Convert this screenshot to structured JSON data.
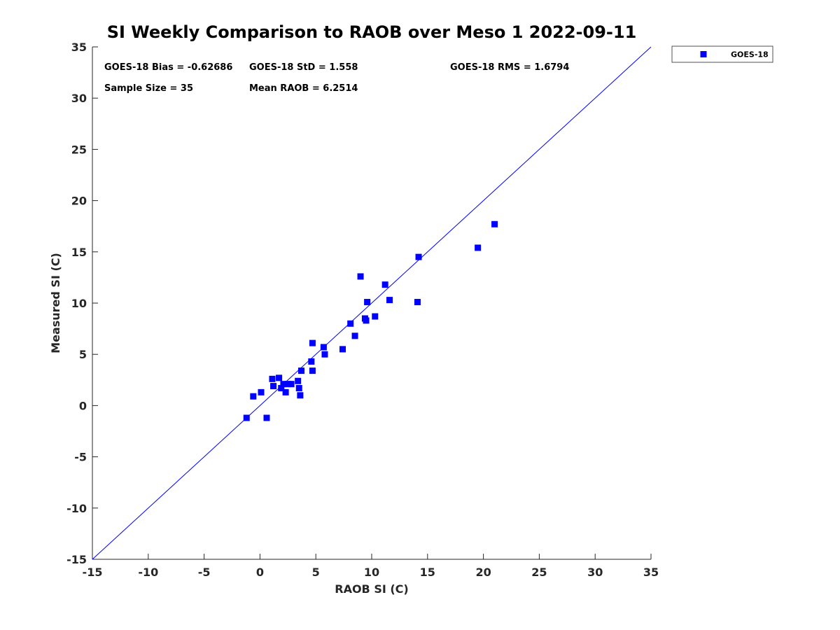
{
  "chart_data": {
    "type": "scatter",
    "title": "SI Weekly Comparison to RAOB over Meso 1 2022-09-11",
    "xlabel": "RAOB SI (C)",
    "ylabel": "Measured SI (C)",
    "xlim": [
      -15,
      35
    ],
    "ylim": [
      -15,
      35
    ],
    "xticks": [
      "-15",
      "-10",
      "-5",
      "0",
      "5",
      "10",
      "15",
      "20",
      "25",
      "30",
      "35"
    ],
    "yticks": [
      "-15",
      "-10",
      "-5",
      "0",
      "5",
      "10",
      "15",
      "20",
      "25",
      "30",
      "35"
    ],
    "grid": false,
    "legend_position": "outside-top-right",
    "reference_line": {
      "from": [
        -15,
        -15
      ],
      "to": [
        35,
        35
      ],
      "color": "#0000ff"
    },
    "series": [
      {
        "name": "GOES-18",
        "color": "#0000ff",
        "marker": "square",
        "points": [
          [
            -1.2,
            -1.2
          ],
          [
            0.6,
            -1.2
          ],
          [
            -0.6,
            0.9
          ],
          [
            0.1,
            1.3
          ],
          [
            1.1,
            2.6
          ],
          [
            1.2,
            1.9
          ],
          [
            1.7,
            2.7
          ],
          [
            1.9,
            1.7
          ],
          [
            2.1,
            2.1
          ],
          [
            2.3,
            1.3
          ],
          [
            2.5,
            2.1
          ],
          [
            2.8,
            2.1
          ],
          [
            3.4,
            2.4
          ],
          [
            3.5,
            1.7
          ],
          [
            3.6,
            1.0
          ],
          [
            3.7,
            3.4
          ],
          [
            4.6,
            4.3
          ],
          [
            4.7,
            6.1
          ],
          [
            4.7,
            3.4
          ],
          [
            5.7,
            5.7
          ],
          [
            5.8,
            5.0
          ],
          [
            7.4,
            5.5
          ],
          [
            8.1,
            8.0
          ],
          [
            8.5,
            6.8
          ],
          [
            9.0,
            12.6
          ],
          [
            9.4,
            8.5
          ],
          [
            9.5,
            8.3
          ],
          [
            9.6,
            10.1
          ],
          [
            10.3,
            8.7
          ],
          [
            11.2,
            11.8
          ],
          [
            11.6,
            10.3
          ],
          [
            14.1,
            10.1
          ],
          [
            14.2,
            14.5
          ],
          [
            19.5,
            15.4
          ],
          [
            21.0,
            17.7
          ]
        ]
      }
    ],
    "stats": {
      "bias": "GOES-18 Bias = -0.62686",
      "std": "GOES-18 StD = 1.558",
      "rms": "GOES-18 RMS = 1.6794",
      "sample_size": "Sample Size = 35",
      "mean_raob": "Mean RAOB = 6.2514"
    },
    "legend": {
      "label": "GOES-18"
    }
  }
}
